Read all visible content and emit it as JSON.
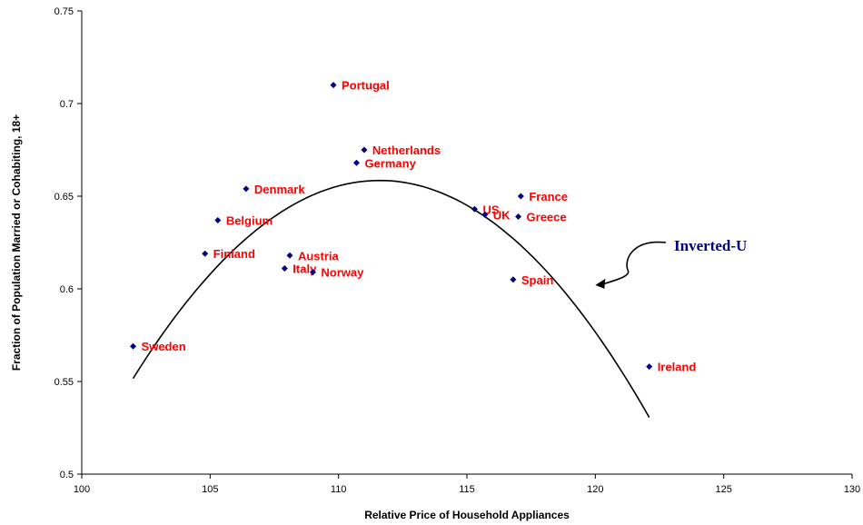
{
  "chart_data": {
    "type": "scatter",
    "title": "",
    "xlabel": "Relative Price of Household Appliances",
    "ylabel": "Fraction of Population Married or Cohabiting, 18+",
    "xlim": [
      100,
      130
    ],
    "ylim": [
      0.5,
      0.75
    ],
    "x_ticks": [
      "100",
      "105",
      "110",
      "115",
      "120",
      "125",
      "130"
    ],
    "y_ticks": [
      "0.5",
      "0.55",
      "0.6",
      "0.65",
      "0.7",
      "0.75"
    ],
    "grid": false,
    "legend": "none",
    "marker_color": "#000080",
    "label_color": "#ff0000",
    "points": [
      {
        "label": "Portugal",
        "x": 109.8,
        "y": 0.71
      },
      {
        "label": "Netherlands",
        "x": 111.0,
        "y": 0.675
      },
      {
        "label": "Germany",
        "x": 110.7,
        "y": 0.668
      },
      {
        "label": "Denmark",
        "x": 106.4,
        "y": 0.654
      },
      {
        "label": "France",
        "x": 117.1,
        "y": 0.65
      },
      {
        "label": "US",
        "x": 115.3,
        "y": 0.643
      },
      {
        "label": "UK",
        "x": 115.7,
        "y": 0.64
      },
      {
        "label": "Greece",
        "x": 117.0,
        "y": 0.639
      },
      {
        "label": "Belgium",
        "x": 105.3,
        "y": 0.637
      },
      {
        "label": "Finland",
        "x": 104.8,
        "y": 0.619
      },
      {
        "label": "Austria",
        "x": 108.1,
        "y": 0.618
      },
      {
        "label": "Italy",
        "x": 107.9,
        "y": 0.611
      },
      {
        "label": "Norway",
        "x": 109.0,
        "y": 0.609
      },
      {
        "label": "Spain",
        "x": 116.8,
        "y": 0.605
      },
      {
        "label": "Sweden",
        "x": 102.0,
        "y": 0.569
      },
      {
        "label": "Ireland",
        "x": 122.1,
        "y": 0.558
      }
    ],
    "trendline": {
      "type": "quadratic",
      "x_range": [
        102.0,
        122.1
      ],
      "vertex": [
        111.6,
        0.6585
      ],
      "a": -0.00116
    },
    "annotation": {
      "text": "Inverted-U",
      "color": "#000080",
      "arrow_target": [
        120.0,
        0.602
      ]
    }
  }
}
